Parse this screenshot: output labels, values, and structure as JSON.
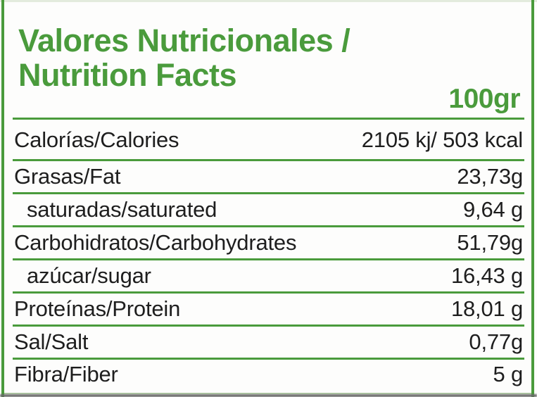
{
  "label": {
    "title": "Valores Nutricionales /\nNutrition Facts",
    "serving": "100gr",
    "rows": [
      {
        "name": "Calorías/Calories",
        "value": "2105 kj/ 503 kcal",
        "indent": false
      },
      {
        "name": "Grasas/Fat",
        "value": "23,73g",
        "indent": false
      },
      {
        "name": "saturadas/saturated",
        "value": "9,64 g",
        "indent": true
      },
      {
        "name": "Carbohidratos/Carbohydrates",
        "value": "51,79g",
        "indent": false
      },
      {
        "name": "azúcar/sugar",
        "value": "16,43 g",
        "indent": true
      },
      {
        "name": "Proteínas/Protein",
        "value": "18,01 g",
        "indent": false
      },
      {
        "name": "Sal/Salt",
        "value": "0,77g",
        "indent": false
      },
      {
        "name": "Fibra/Fiber",
        "value": "5 g",
        "indent": false
      }
    ],
    "colors": {
      "accent_green": "#4a9b3c",
      "text_dark": "#1e1e1e",
      "light_rule_green": "#b9d6ad",
      "bottom_bar_gray": "#6a6a6a"
    }
  }
}
